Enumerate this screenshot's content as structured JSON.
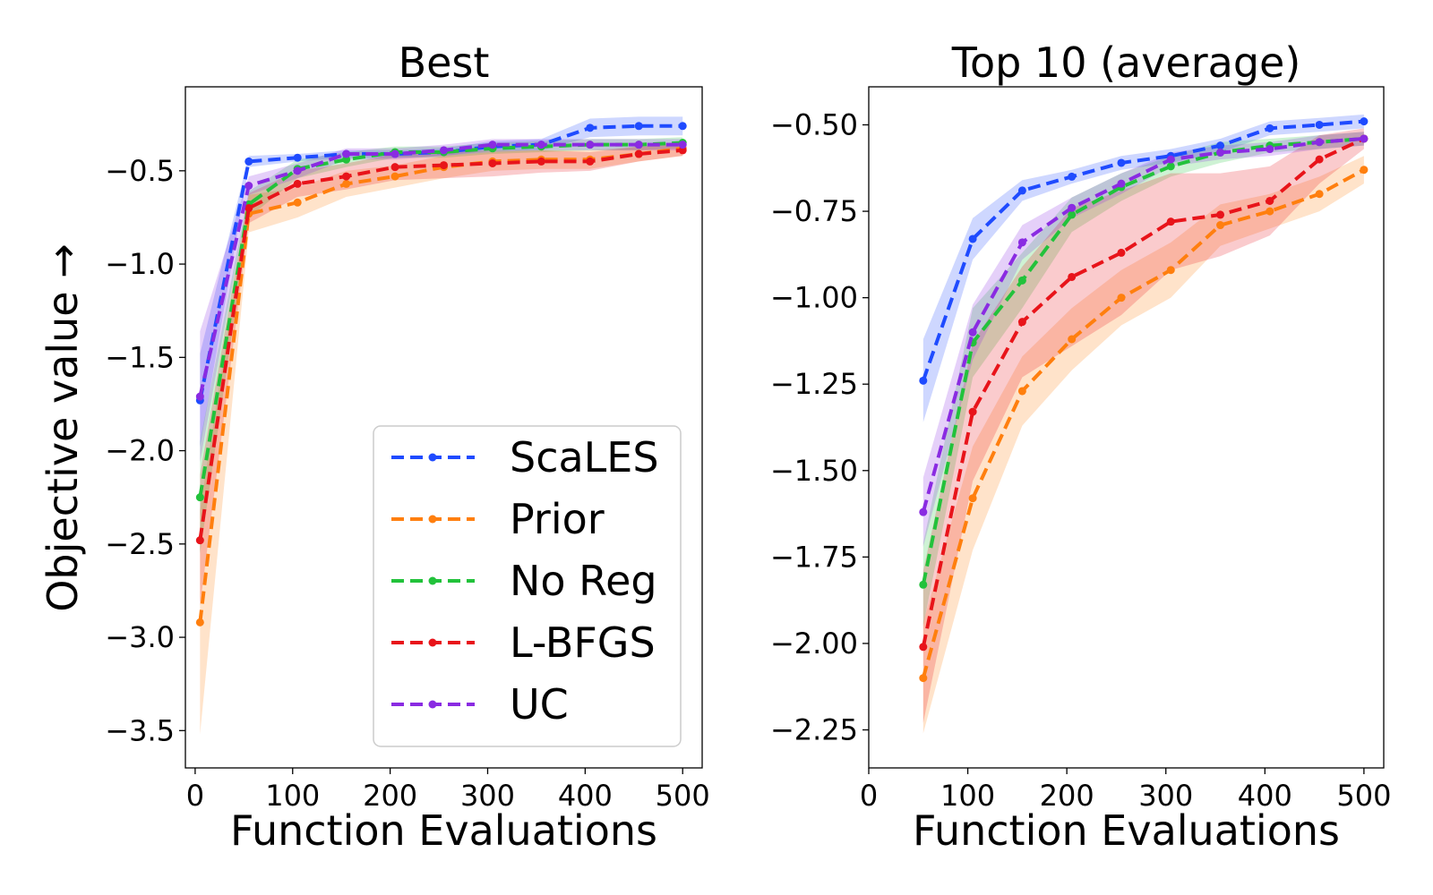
{
  "figure": {
    "ylabel": "Objective value →"
  },
  "legend": {
    "entries": [
      "ScaLES",
      "Prior",
      "No Reg",
      "L-BFGS",
      "UC"
    ],
    "placement": "lower-right of left panel"
  },
  "chart_data": [
    {
      "type": "line",
      "title": "Best",
      "xlabel": "Function Evaluations",
      "ylabel": "Objective value →",
      "xlim": [
        -10,
        520
      ],
      "ylim": [
        -3.7,
        -0.05
      ],
      "xticks": [
        0,
        100,
        200,
        300,
        400,
        500
      ],
      "xtick_labels": [
        "0",
        "100",
        "200",
        "300",
        "400",
        "500"
      ],
      "yticks": [
        -3.5,
        -3.0,
        -2.5,
        -2.0,
        -1.5,
        -1.0,
        -0.5
      ],
      "ytick_labels": [
        "−3.5",
        "−3.0",
        "−2.5",
        "−2.0",
        "−1.5",
        "−1.0",
        "−0.5"
      ],
      "grid": false,
      "x": [
        5,
        55,
        105,
        155,
        205,
        255,
        305,
        355,
        405,
        455,
        500
      ],
      "series": [
        {
          "name": "ScaLES",
          "color": "#1f4bff",
          "values": [
            -1.73,
            -0.45,
            -0.43,
            -0.41,
            -0.41,
            -0.4,
            -0.37,
            -0.36,
            -0.27,
            -0.26,
            -0.26
          ],
          "band": [
            0.25,
            0.03,
            0.02,
            0.02,
            0.02,
            0.02,
            0.03,
            0.03,
            0.05,
            0.05,
            0.05
          ]
        },
        {
          "name": "Prior",
          "color": "#ff7f0e",
          "values": [
            -2.92,
            -0.73,
            -0.67,
            -0.57,
            -0.53,
            -0.48,
            -0.45,
            -0.44,
            -0.44,
            -0.41,
            -0.38
          ],
          "band": [
            0.6,
            0.1,
            0.08,
            0.07,
            0.06,
            0.06,
            0.05,
            0.05,
            0.05,
            0.04,
            0.04
          ]
        },
        {
          "name": "No Reg",
          "color": "#22c23b",
          "values": [
            -2.25,
            -0.68,
            -0.49,
            -0.44,
            -0.4,
            -0.4,
            -0.38,
            -0.37,
            -0.36,
            -0.36,
            -0.35
          ],
          "band": [
            0.3,
            0.07,
            0.05,
            0.04,
            0.03,
            0.03,
            0.03,
            0.03,
            0.03,
            0.03,
            0.03
          ]
        },
        {
          "name": "L-BFGS",
          "color": "#e8141a",
          "values": [
            -2.48,
            -0.7,
            -0.57,
            -0.53,
            -0.48,
            -0.47,
            -0.46,
            -0.45,
            -0.45,
            -0.41,
            -0.39
          ],
          "band": [
            0.35,
            0.08,
            0.07,
            0.07,
            0.07,
            0.07,
            0.07,
            0.06,
            0.05,
            0.04,
            0.03
          ]
        },
        {
          "name": "UC",
          "color": "#8a2be2",
          "values": [
            -1.71,
            -0.58,
            -0.5,
            -0.41,
            -0.41,
            -0.39,
            -0.36,
            -0.36,
            -0.36,
            -0.36,
            -0.36
          ],
          "band": [
            0.35,
            0.05,
            0.04,
            0.03,
            0.03,
            0.03,
            0.03,
            0.03,
            0.03,
            0.03,
            0.03
          ]
        }
      ]
    },
    {
      "type": "line",
      "title": "Top 10 (average)",
      "xlabel": "Function Evaluations",
      "ylabel": "",
      "xlim": [
        0,
        520
      ],
      "ylim": [
        -2.36,
        -0.39
      ],
      "xticks": [
        0,
        100,
        200,
        300,
        400,
        500
      ],
      "xtick_labels": [
        "0",
        "100",
        "200",
        "300",
        "400",
        "500"
      ],
      "yticks": [
        -2.25,
        -2.0,
        -1.75,
        -1.5,
        -1.25,
        -1.0,
        -0.75,
        -0.5
      ],
      "ytick_labels": [
        "−2.25",
        "−2.00",
        "−1.75",
        "−1.50",
        "−1.25",
        "−1.00",
        "−0.75",
        "−0.50"
      ],
      "grid": false,
      "x": [
        55,
        105,
        155,
        205,
        255,
        305,
        355,
        405,
        455,
        500
      ],
      "series": [
        {
          "name": "ScaLES",
          "color": "#1f4bff",
          "values": [
            -1.24,
            -0.83,
            -0.69,
            -0.65,
            -0.61,
            -0.59,
            -0.56,
            -0.51,
            -0.5,
            -0.49
          ],
          "band": [
            0.12,
            0.06,
            0.03,
            0.02,
            0.02,
            0.02,
            0.02,
            0.02,
            0.02,
            0.02
          ]
        },
        {
          "name": "Prior",
          "color": "#ff7f0e",
          "values": [
            -2.1,
            -1.58,
            -1.27,
            -1.12,
            -1.0,
            -0.92,
            -0.79,
            -0.75,
            -0.7,
            -0.63
          ],
          "band": [
            0.16,
            0.15,
            0.1,
            0.09,
            0.08,
            0.08,
            0.06,
            0.05,
            0.05,
            0.04
          ]
        },
        {
          "name": "No Reg",
          "color": "#22c23b",
          "values": [
            -1.83,
            -1.13,
            -0.95,
            -0.76,
            -0.68,
            -0.62,
            -0.58,
            -0.56,
            -0.55,
            -0.54
          ],
          "band": [
            0.12,
            0.1,
            0.08,
            0.05,
            0.04,
            0.03,
            0.03,
            0.02,
            0.02,
            0.02
          ]
        },
        {
          "name": "L-BFGS",
          "color": "#e8141a",
          "values": [
            -2.01,
            -1.33,
            -1.07,
            -0.94,
            -0.87,
            -0.78,
            -0.76,
            -0.72,
            -0.6,
            -0.54
          ],
          "band": [
            0.22,
            0.2,
            0.16,
            0.2,
            0.18,
            0.14,
            0.12,
            0.1,
            0.07,
            0.03
          ]
        },
        {
          "name": "UC",
          "color": "#8a2be2",
          "values": [
            -1.62,
            -1.1,
            -0.84,
            -0.74,
            -0.67,
            -0.6,
            -0.58,
            -0.57,
            -0.55,
            -0.54
          ],
          "band": [
            0.1,
            0.08,
            0.05,
            0.03,
            0.03,
            0.02,
            0.02,
            0.02,
            0.02,
            0.02
          ]
        }
      ]
    }
  ]
}
